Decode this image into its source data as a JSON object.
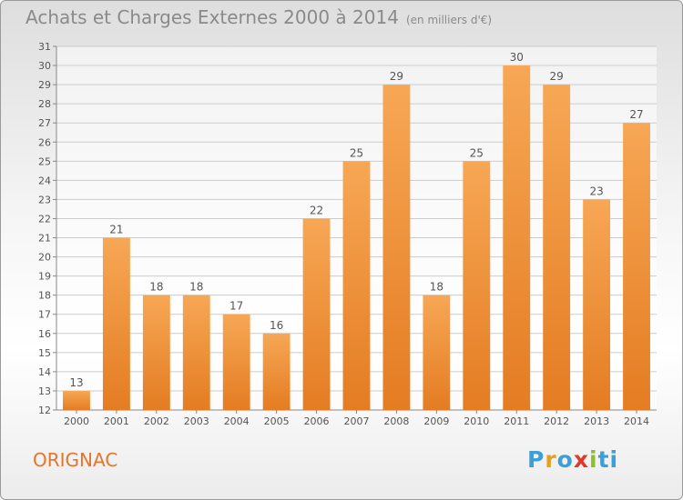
{
  "header": {
    "title": "Achats et Charges Externes 2000 à 2014",
    "unit": "(en milliers d'€)"
  },
  "footer": {
    "commune": "ORIGNAC",
    "logo_letters": [
      "P",
      "r",
      "o",
      "x",
      "i",
      "ti"
    ]
  },
  "colors": {
    "bar_light": "#f7a755",
    "bar_dark": "#e47c22",
    "grid": "#cccccc",
    "text": "#555555",
    "commune": "#e3752c"
  },
  "chart_data": {
    "type": "bar",
    "title": "Achats et Charges Externes 2000 à 2014",
    "subtitle": "(en milliers d'€)",
    "categories": [
      "2000",
      "2001",
      "2002",
      "2003",
      "2004",
      "2005",
      "2006",
      "2007",
      "2008",
      "2009",
      "2010",
      "2011",
      "2012",
      "2013",
      "2014"
    ],
    "values": [
      13,
      21,
      18,
      18,
      17,
      16,
      22,
      25,
      29,
      18,
      25,
      30,
      29,
      23,
      27
    ],
    "ylim": [
      12,
      31
    ],
    "yticks": [
      12,
      13,
      14,
      15,
      16,
      17,
      18,
      19,
      20,
      21,
      22,
      23,
      24,
      25,
      26,
      27,
      28,
      29,
      30,
      31
    ],
    "grid": true,
    "legend": "none"
  }
}
